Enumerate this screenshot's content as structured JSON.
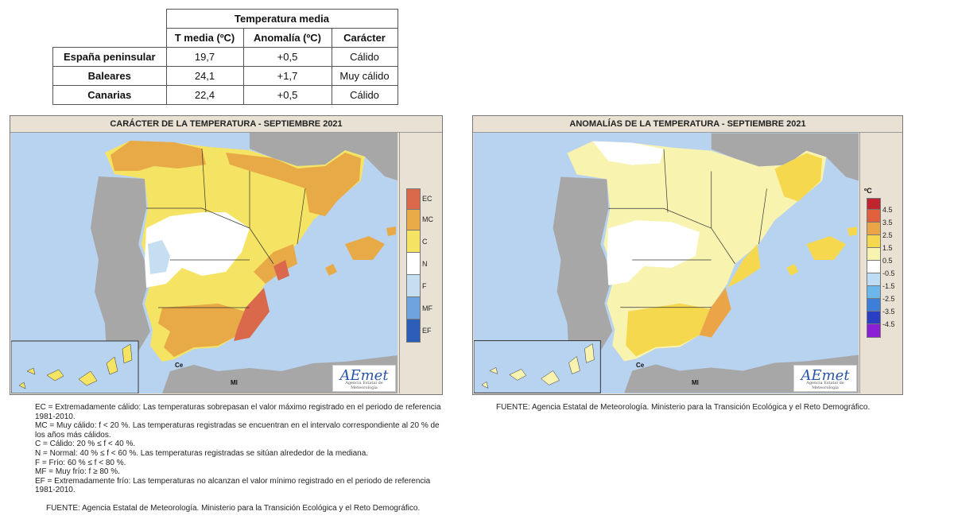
{
  "table": {
    "title": "Temperatura media",
    "columns": [
      "T media (ºC)",
      "Anomalía (ºC)",
      "Carácter"
    ],
    "rows": [
      {
        "region": "España peninsular",
        "tmedia": "19,7",
        "anomalia": "+0,5",
        "caracter": "Cálido"
      },
      {
        "region": "Baleares",
        "tmedia": "24,1",
        "anomalia": "+1,7",
        "caracter": "Muy cálido"
      },
      {
        "region": "Canarias",
        "tmedia": "22,4",
        "anomalia": "+0,5",
        "caracter": "Cálido"
      }
    ]
  },
  "map_left": {
    "title": "CARÁCTER DE LA TEMPERATURA - SEPTIEMBRE 2021",
    "legend": [
      {
        "label": "EC",
        "color": "#d9694a"
      },
      {
        "label": "MC",
        "color": "#e8a947"
      },
      {
        "label": "C",
        "color": "#f5e463"
      },
      {
        "label": "N",
        "color": "#ffffff"
      },
      {
        "label": "F",
        "color": "#c5def0"
      },
      {
        "label": "MF",
        "color": "#6fa3e0"
      },
      {
        "label": "EF",
        "color": "#2c5db8"
      }
    ],
    "logo": "AEmet",
    "logo_sub": "Agencia Estatal de Meteorología",
    "labels": {
      "ce": "Ce",
      "ml": "Ml"
    }
  },
  "map_right": {
    "title": "ANOMALÍAS DE LA TEMPERATURA - SEPTIEMBRE 2021",
    "unit": "ºC",
    "legend": [
      {
        "label": "4.5",
        "color": "#c0242c"
      },
      {
        "label": "3.5",
        "color": "#e0613c"
      },
      {
        "label": "2.5",
        "color": "#eba546"
      },
      {
        "label": "1.5",
        "color": "#f5d84e"
      },
      {
        "label": "0.5",
        "color": "#f9f3b0"
      },
      {
        "label": "-0.5",
        "color": "#ffffff"
      },
      {
        "label": "-1.5",
        "color": "#bedcf3"
      },
      {
        "label": "-2.5",
        "color": "#6bb7ea"
      },
      {
        "label": "-3.5",
        "color": "#3d7fd8"
      },
      {
        "label": "-4.5",
        "color": "#2a3fc4"
      },
      {
        "label": "",
        "color": "#8a1fd6"
      }
    ],
    "logo": "AEmet",
    "logo_sub": "Agencia Estatal de Meteorología",
    "labels": {
      "ce": "Ce",
      "ml": "Ml"
    }
  },
  "notes": [
    "EC = Extremadamente cálido: Las temperaturas sobrepasan el valor máximo registrado en el periodo de referencia 1981-2010.",
    "MC = Muy cálido: f < 20 %. Las temperaturas registradas se encuentran en el intervalo correspondiente al 20 % de los años más cálidos.",
    "C = Cálido: 20 % ≤ f < 40 %.",
    "N = Normal: 40 % ≤ f < 60 %. Las temperaturas registradas se sitúan alrededor de la mediana.",
    "F = Frío: 60 % ≤ f < 80 %.",
    "MF = Muy frío: f ≥ 80 %.",
    "EF = Extremadamente frío: Las temperaturas no alcanzan el valor mínimo registrado en el periodo de referencia 1981-2010."
  ],
  "fuente": "FUENTE: Agencia Estatal de Meteorología. Ministerio para la Transición Ecológica y el Reto Demográfico."
}
